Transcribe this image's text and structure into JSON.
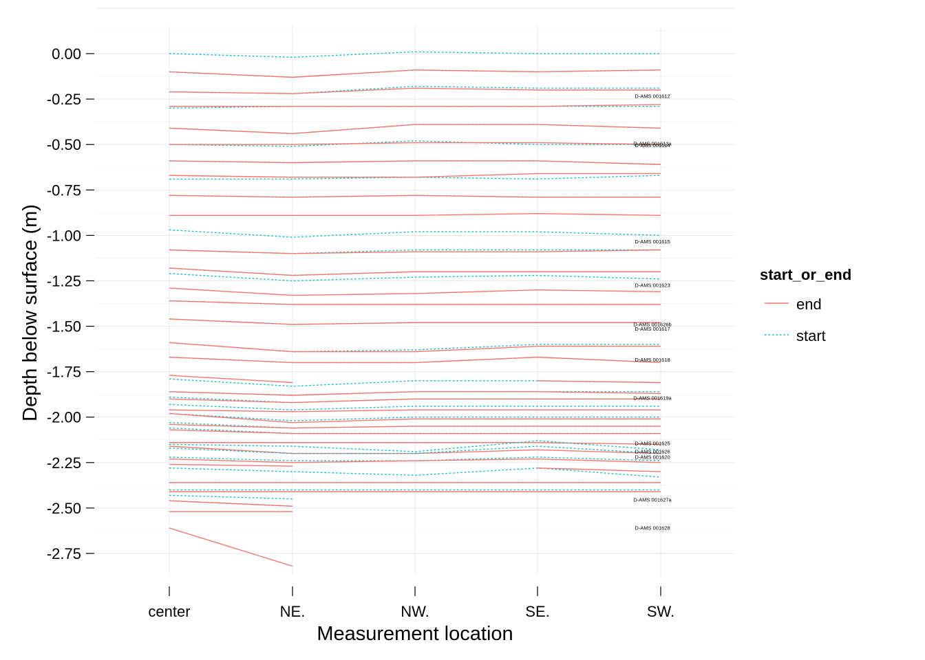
{
  "chart_data": {
    "type": "line",
    "xlabel": "Measurement location",
    "ylabel": "Depth below surface (m)",
    "categories": [
      "center",
      "NE.",
      "NW.",
      "SE.",
      "SW."
    ],
    "y_ticks": [
      "0.00",
      "-0.25",
      "-0.50",
      "-0.75",
      "-1.00",
      "-1.25",
      "-1.50",
      "-1.75",
      "-2.00",
      "-2.25",
      "-2.50",
      "-2.75"
    ],
    "y_tick_values": [
      0,
      -0.25,
      -0.5,
      -0.75,
      -1.0,
      -1.25,
      -1.5,
      -1.75,
      -2.0,
      -2.25,
      -2.5,
      -2.75
    ],
    "ylim": [
      -2.92,
      0.13
    ],
    "grid": true,
    "legend": {
      "title": "start_or_end",
      "position": "right",
      "items": [
        {
          "label": "end",
          "color": "#F8766D",
          "dash": "solid"
        },
        {
          "label": "start",
          "color": "#00BFC4",
          "dash": "dotted"
        }
      ]
    },
    "colors": {
      "end": "#F8766D",
      "start": "#00BFC4"
    },
    "series": [
      {
        "group": "start",
        "values": [
          0.0,
          -0.02,
          0.01,
          0.0,
          0.0
        ]
      },
      {
        "group": "start",
        "values": [
          -0.1,
          -0.13,
          -0.09,
          -0.1,
          -0.09
        ]
      },
      {
        "group": "end",
        "values": [
          -0.1,
          -0.13,
          -0.09,
          -0.1,
          -0.09
        ]
      },
      {
        "group": "start",
        "values": [
          -0.21,
          -0.22,
          -0.18,
          -0.19,
          -0.19
        ]
      },
      {
        "group": "end",
        "values": [
          -0.21,
          -0.22,
          -0.19,
          -0.2,
          -0.2
        ]
      },
      {
        "group": "start",
        "values": [
          -0.3,
          -0.29,
          -0.29,
          -0.29,
          -0.29
        ]
      },
      {
        "group": "end",
        "values": [
          -0.29,
          -0.29,
          -0.29,
          -0.29,
          -0.28
        ]
      },
      {
        "group": "start",
        "values": [
          -0.41,
          -0.44,
          -0.39,
          -0.39,
          -0.41
        ]
      },
      {
        "group": "end",
        "values": [
          -0.41,
          -0.44,
          -0.39,
          -0.39,
          -0.41
        ]
      },
      {
        "group": "start",
        "values": [
          -0.5,
          -0.51,
          -0.48,
          -0.5,
          -0.5
        ]
      },
      {
        "group": "end",
        "values": [
          -0.5,
          -0.5,
          -0.49,
          -0.49,
          -0.5
        ]
      },
      {
        "group": "start",
        "values": [
          -0.59,
          -0.6,
          -0.59,
          -0.59,
          -0.61
        ]
      },
      {
        "group": "end",
        "values": [
          -0.59,
          -0.6,
          -0.59,
          -0.59,
          -0.61
        ]
      },
      {
        "group": "start",
        "values": [
          -0.69,
          -0.69,
          -0.68,
          -0.69,
          -0.67
        ]
      },
      {
        "group": "end",
        "values": [
          -0.67,
          -0.68,
          -0.68,
          -0.66,
          -0.66
        ]
      },
      {
        "group": "start",
        "values": [
          -0.78,
          -0.79,
          -0.78,
          -0.79,
          -0.79
        ]
      },
      {
        "group": "end",
        "values": [
          -0.78,
          -0.79,
          -0.78,
          -0.79,
          -0.79
        ]
      },
      {
        "group": "end",
        "values": [
          -0.89,
          -0.89,
          -0.89,
          -0.88,
          -0.89
        ]
      },
      {
        "group": "start",
        "values": [
          -0.97,
          -1.01,
          -0.98,
          -0.98,
          -1.0
        ]
      },
      {
        "group": "start",
        "values": [
          -1.08,
          -1.1,
          -1.08,
          -1.08,
          -1.08
        ]
      },
      {
        "group": "end",
        "values": [
          -1.08,
          -1.1,
          -1.09,
          -1.09,
          -1.08
        ]
      },
      {
        "group": "start",
        "values": [
          -1.18,
          -1.22,
          -1.2,
          -1.2,
          -1.2
        ]
      },
      {
        "group": "end",
        "values": [
          -1.18,
          -1.22,
          -1.2,
          -1.2,
          -1.2
        ]
      },
      {
        "group": "start",
        "values": [
          -1.21,
          -1.25,
          -1.23,
          -1.22,
          -1.24
        ]
      },
      {
        "group": "end",
        "values": [
          -1.29,
          -1.33,
          -1.32,
          -1.3,
          -1.31
        ]
      },
      {
        "group": "start",
        "values": [
          -1.36,
          -1.38,
          -1.38,
          -1.38,
          -1.38
        ]
      },
      {
        "group": "end",
        "values": [
          -1.36,
          -1.38,
          -1.38,
          -1.38,
          -1.38
        ]
      },
      {
        "group": "start",
        "values": [
          -1.46,
          -1.49,
          -1.48,
          -1.48,
          -1.48
        ]
      },
      {
        "group": "end",
        "values": [
          -1.46,
          -1.49,
          -1.48,
          -1.48,
          -1.48
        ]
      },
      {
        "group": "start",
        "values": [
          -1.59,
          -1.64,
          -1.63,
          -1.6,
          -1.6
        ]
      },
      {
        "group": "end",
        "values": [
          -1.59,
          -1.64,
          -1.64,
          -1.61,
          -1.61
        ]
      },
      {
        "group": "start",
        "values": [
          -1.67,
          -1.7,
          -1.7,
          -1.67,
          -1.7
        ]
      },
      {
        "group": "end",
        "values": [
          -1.67,
          -1.7,
          -1.7,
          -1.67,
          -1.7
        ]
      },
      {
        "group": "end",
        "values": [
          -1.77,
          -1.81,
          null,
          null,
          null
        ]
      },
      {
        "group": "start",
        "values": [
          -1.79,
          -1.83,
          -1.8,
          -1.8,
          -1.81
        ]
      },
      {
        "group": "end",
        "values": [
          null,
          null,
          null,
          -1.8,
          -1.81
        ]
      },
      {
        "group": "start",
        "values": [
          -1.86,
          -1.88,
          -1.86,
          -1.86,
          -1.86
        ]
      },
      {
        "group": "end",
        "values": [
          -1.86,
          -1.88,
          -1.86,
          -1.86,
          -1.87
        ]
      },
      {
        "group": "start",
        "values": [
          -1.89,
          -1.92,
          -1.9,
          -1.9,
          -1.9
        ]
      },
      {
        "group": "end",
        "values": [
          -1.9,
          -1.92,
          -1.9,
          -1.9,
          -1.9
        ]
      },
      {
        "group": "start",
        "values": [
          -1.93,
          -1.96,
          -1.94,
          -1.94,
          -1.94
        ]
      },
      {
        "group": "end",
        "values": [
          -1.96,
          -1.97,
          -1.96,
          -1.96,
          -1.96
        ]
      },
      {
        "group": "start",
        "values": [
          -1.98,
          -2.02,
          -2.0,
          -2.0,
          -2.0
        ]
      },
      {
        "group": "end",
        "values": [
          -1.98,
          -2.03,
          -2.01,
          -2.01,
          -2.01
        ]
      },
      {
        "group": "start",
        "values": [
          -2.03,
          -2.06,
          -2.05,
          -2.05,
          -2.05
        ]
      },
      {
        "group": "end",
        "values": [
          -2.04,
          -2.06,
          -2.05,
          -2.05,
          -2.05
        ]
      },
      {
        "group": "start",
        "values": [
          -2.06,
          -2.09,
          -2.09,
          -2.09,
          -2.09
        ]
      },
      {
        "group": "end",
        "values": [
          -2.07,
          -2.09,
          -2.09,
          -2.09,
          -2.09
        ]
      },
      {
        "group": "end",
        "values": [
          -2.14,
          -2.14,
          -2.14,
          -2.14,
          -2.15
        ]
      },
      {
        "group": "start",
        "values": [
          -2.15,
          -2.16,
          -2.19,
          -2.13,
          -2.18
        ]
      },
      {
        "group": "end",
        "values": [
          -2.16,
          -2.2,
          -2.2,
          -2.18,
          -2.2
        ]
      },
      {
        "group": "start",
        "values": [
          -2.17,
          -2.2,
          -2.2,
          -2.16,
          -2.2
        ]
      },
      {
        "group": "start",
        "values": [
          -2.22,
          -2.24,
          -2.24,
          -2.22,
          -2.24
        ]
      },
      {
        "group": "end",
        "values": [
          -2.23,
          -2.25,
          -2.24,
          -2.23,
          -2.25
        ]
      },
      {
        "group": "end",
        "values": [
          -2.26,
          -2.27,
          null,
          null,
          null
        ]
      },
      {
        "group": "start",
        "values": [
          -2.28,
          -2.3,
          -2.32,
          -2.28,
          -2.33
        ]
      },
      {
        "group": "end",
        "values": [
          null,
          null,
          null,
          -2.28,
          -2.3
        ]
      },
      {
        "group": "start",
        "values": [
          -2.36,
          -2.36,
          -2.36,
          -2.36,
          -2.36
        ]
      },
      {
        "group": "end",
        "values": [
          -2.36,
          -2.36,
          -2.36,
          -2.36,
          -2.36
        ]
      },
      {
        "group": "start",
        "values": [
          -2.4,
          -2.4,
          -2.4,
          -2.4,
          -2.4
        ]
      },
      {
        "group": "end",
        "values": [
          -2.41,
          -2.41,
          -2.41,
          -2.41,
          -2.41
        ]
      },
      {
        "group": "start",
        "values": [
          -2.43,
          -2.45,
          null,
          null,
          null
        ]
      },
      {
        "group": "start",
        "values": [
          -2.46,
          -2.49,
          null,
          null,
          null
        ]
      },
      {
        "group": "end",
        "values": [
          -2.46,
          -2.49,
          null,
          null,
          null
        ]
      },
      {
        "group": "end",
        "values": [
          -2.52,
          -2.52,
          null,
          null,
          null
        ]
      },
      {
        "group": "end",
        "values": [
          -2.61,
          -2.82,
          null,
          null,
          null
        ]
      }
    ],
    "annotations": [
      {
        "text": "D-AMS 001612",
        "x": "SW.",
        "y": -0.235
      },
      {
        "text": "D-AMS 001614",
        "x": "SW.",
        "y": -0.505
      },
      {
        "text": "D-AMS 001613a",
        "x": "SW.",
        "y": -0.495
      },
      {
        "text": "D-AMS 001615",
        "x": "SW.",
        "y": -1.035
      },
      {
        "text": "D-AMS 001623",
        "x": "SW.",
        "y": -1.275
      },
      {
        "text": "D-AMS 001626b",
        "x": "SW.",
        "y": -1.49
      },
      {
        "text": "D-AMS 001617",
        "x": "SW.",
        "y": -1.515
      },
      {
        "text": "D-AMS 001618",
        "x": "SW.",
        "y": -1.685
      },
      {
        "text": "D-AMS 001619a",
        "x": "SW.",
        "y": -1.895
      },
      {
        "text": "D-AMS 001625",
        "x": "SW.",
        "y": -2.145
      },
      {
        "text": "D-AMS 001626",
        "x": "SW.",
        "y": -2.19
      },
      {
        "text": "D-AMS 001620",
        "x": "SW.",
        "y": -2.22
      },
      {
        "text": "D-AMS 001627a",
        "x": "SW.",
        "y": -2.455
      },
      {
        "text": "D-AMS 001628",
        "x": "SW.",
        "y": -2.61
      }
    ]
  }
}
